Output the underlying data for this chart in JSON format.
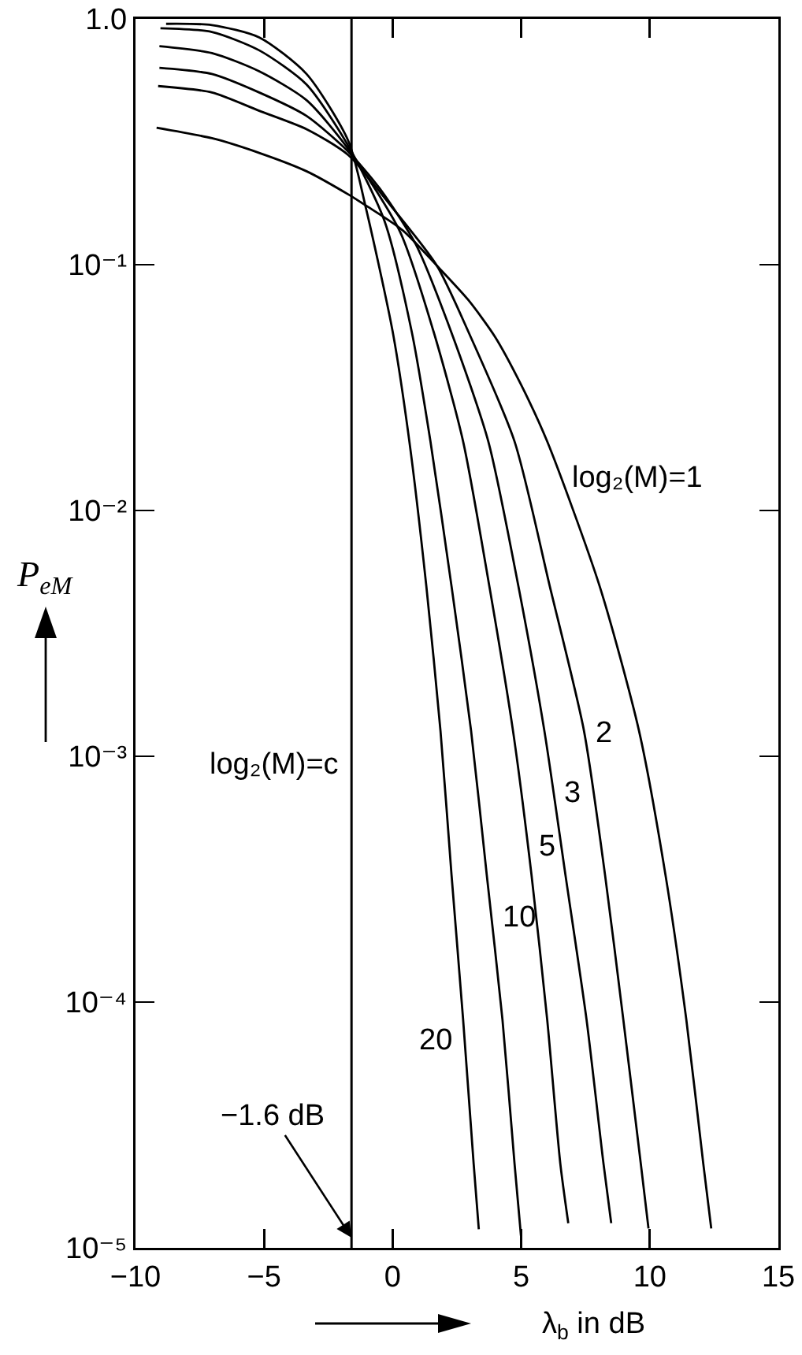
{
  "chart_data": {
    "type": "line",
    "xlabel": "λ$_{b}$ in dB",
    "ylabel": "P$_{eM}$",
    "xlim": [
      -10,
      15
    ],
    "xticks": [
      -10,
      -5,
      0,
      5,
      10,
      15
    ],
    "ylim": [
      1e-05,
      1
    ],
    "yticks": [
      {
        "value": 1,
        "label": "1.0"
      },
      {
        "value": 0.1,
        "label": "10⁻¹"
      },
      {
        "value": 0.01,
        "label": "10⁻²"
      },
      {
        "value": 0.001,
        "label": "10⁻³"
      },
      {
        "value": 0.0001,
        "label": "10⁻⁴"
      },
      {
        "value": 1e-05,
        "label": "10⁻⁵"
      }
    ],
    "log": "y",
    "series": [
      {
        "name": "log₂(M)=1",
        "color": "#000000",
        "x": [
          -9.18,
          -7.03,
          -5.19,
          -3.35,
          -1.72,
          -1.04,
          0.39,
          1.72,
          2.94,
          3.97,
          4.98,
          6.01,
          8.05,
          9.58,
          10.61,
          11.42,
          12.08,
          12.39
        ],
        "values": [
          0.361,
          0.327,
          0.285,
          0.24,
          0.193,
          0.174,
          0.138,
          0.0991,
          0.0719,
          0.0511,
          0.0327,
          0.0191,
          0.00492,
          0.00127,
          0.000329,
          8.49e-05,
          2.2e-05,
          1.2e-05
        ]
      },
      {
        "name": "2",
        "color": "#000000",
        "x": [
          -9.12,
          -7.03,
          -5.19,
          -3.35,
          -1.72,
          0,
          1.72,
          2.94,
          4.74,
          6.11,
          7.44,
          8.26,
          8.97,
          9.65,
          9.95
        ],
        "values": [
          0.533,
          0.502,
          0.423,
          0.356,
          0.279,
          0.17,
          0.0991,
          0.0535,
          0.0191,
          0.00492,
          0.00127,
          0.000329,
          8.49e-05,
          2.2e-05,
          1.2e-05
        ]
      },
      {
        "name": "3",
        "color": "#000000",
        "x": [
          -9.07,
          -7.03,
          -5.19,
          -3.35,
          -1.72,
          -0.5,
          0.9,
          2.27,
          3.72,
          4.89,
          5.9,
          6.72,
          7.54,
          8.2,
          8.5
        ],
        "values": [
          0.632,
          0.597,
          0.502,
          0.403,
          0.288,
          0.204,
          0.121,
          0.0535,
          0.0191,
          0.00492,
          0.00127,
          0.000329,
          8.49e-05,
          2.2e-05,
          1.26e-05
        ]
      },
      {
        "name": "5",
        "color": "#000000",
        "x": [
          -9.07,
          -7.03,
          -5.19,
          -3.35,
          -1.72,
          0.29,
          1.59,
          2.74,
          3.76,
          4.68,
          5.4,
          6.01,
          6.52,
          6.83
        ],
        "values": [
          0.774,
          0.726,
          0.612,
          0.467,
          0.295,
          0.136,
          0.0535,
          0.0191,
          0.00492,
          0.00127,
          0.000329,
          8.49e-05,
          2.2e-05,
          1.26e-05
        ]
      },
      {
        "name": "10",
        "color": "#000000",
        "x": [
          -9.03,
          -7.03,
          -5.19,
          -3.35,
          -1.72,
          -0.32,
          0.74,
          1.47,
          2.29,
          3.05,
          3.66,
          4.27,
          4.74,
          4.99
        ],
        "values": [
          0.916,
          0.885,
          0.745,
          0.541,
          0.304,
          0.151,
          0.0535,
          0.0191,
          0.00492,
          0.00127,
          0.000329,
          8.49e-05,
          2.2e-05,
          1.12e-05
        ]
      },
      {
        "name": "20",
        "color": "#000000",
        "x": [
          -8.81,
          -7.03,
          -5.19,
          -3.35,
          -1.72,
          -1.04,
          0,
          0.65,
          1.31,
          1.86,
          2.29,
          2.74,
          3.15,
          3.35
        ],
        "values": [
          0.955,
          0.944,
          0.841,
          0.597,
          0.318,
          0.17,
          0.0535,
          0.0191,
          0.00492,
          0.00127,
          0.000329,
          8.49e-05,
          2.2e-05,
          1.19e-05
        ]
      }
    ],
    "ref_lines": [
      {
        "axis": "x",
        "value": -1.6,
        "label": "log₂(M)=c",
        "color": "#000000"
      }
    ],
    "annotations": [
      {
        "text": "−1.6 dB",
        "x": -1.6,
        "y": 1.1e-05
      }
    ]
  }
}
